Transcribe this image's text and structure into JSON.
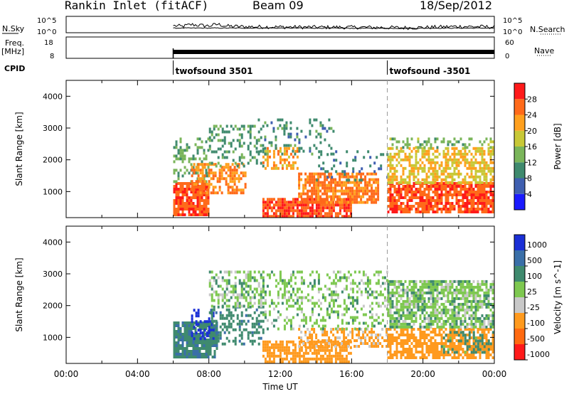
{
  "header": {
    "title": "Rankin Inlet (fitACF)",
    "beam": "Beam 09",
    "date": "18/Sep/2012"
  },
  "chart_data": [
    {
      "type": "line",
      "name": "noise-panel",
      "ylabel_left": "N.Sky",
      "ylabel_right": "N.Search",
      "left_ticks": [
        "10^5",
        "10^0"
      ],
      "right_ticks": [
        "10^5",
        "10^0"
      ],
      "xlim": [
        "00:00",
        "24:00"
      ],
      "data_start": "06:00",
      "series": [
        {
          "values": [
            [
              6.0,
              2.1
            ],
            [
              6.5,
              1.8
            ],
            [
              7.0,
              2.5
            ],
            [
              7.5,
              2.2
            ],
            [
              8.0,
              2.0
            ],
            [
              8.5,
              2.6
            ],
            [
              9.0,
              1.9
            ],
            [
              10.0,
              1.7
            ],
            [
              12.0,
              1.6
            ],
            [
              14.0,
              1.5
            ],
            [
              16.0,
              1.5
            ],
            [
              18.0,
              1.4
            ],
            [
              19.0,
              1.3
            ],
            [
              20.0,
              1.4
            ],
            [
              21.0,
              1.6
            ],
            [
              22.0,
              1.8
            ],
            [
              23.0,
              1.7
            ],
            [
              24.0,
              1.6
            ]
          ]
        },
        {
          "values": [
            [
              6.0,
              1.2
            ],
            [
              10.0,
              1.2
            ],
            [
              14.0,
              1.2
            ],
            [
              18.0,
              1.1
            ],
            [
              22.0,
              1.2
            ],
            [
              24.0,
              1.2
            ]
          ]
        }
      ]
    },
    {
      "type": "line",
      "name": "freq-nave-panel",
      "ylabel_left": "Freq. [MHz]",
      "ylabel_right": "Nave",
      "left_ticks": [
        18,
        8
      ],
      "right_ticks": [
        60,
        0
      ],
      "xlim": [
        "00:00",
        "24:00"
      ],
      "data_start": "06:00",
      "series": [
        {
          "values": [
            [
              6.0,
              11.0
            ],
            [
              24.0,
              11.0
            ]
          ]
        },
        {
          "values": [
            [
              6.0,
              10.0
            ],
            [
              24.0,
              10.0
            ]
          ]
        }
      ]
    },
    {
      "type": "table",
      "name": "cpid-row",
      "label": "CPID",
      "entries": [
        {
          "time": "06:00",
          "text": "twofsound 3501"
        },
        {
          "time": "18:00",
          "text": "twofsound -3501"
        }
      ]
    },
    {
      "type": "heatmap",
      "name": "power-panel",
      "ylabel": "Slant Range [km]",
      "yticks": [
        1000,
        2000,
        3000,
        4000
      ],
      "ylim": [
        180,
        4500
      ],
      "xlim": [
        "00:00",
        "24:00"
      ],
      "colorbar": {
        "label": "Power [dB]",
        "ticks": [
          4,
          8,
          12,
          16,
          20,
          24,
          28
        ],
        "range": [
          0,
          32
        ]
      },
      "regions": [
        {
          "t0": 6.0,
          "t1": 8.0,
          "r0": 300,
          "r1": 1300,
          "v": 27,
          "density": 0.85
        },
        {
          "t0": 6.0,
          "t1": 8.0,
          "r0": 1300,
          "r1": 2700,
          "v": 12,
          "density": 0.35
        },
        {
          "t0": 7.0,
          "t1": 10.0,
          "r0": 1000,
          "r1": 1900,
          "v": 24,
          "density": 0.6
        },
        {
          "t0": 8.0,
          "t1": 11.0,
          "r0": 1800,
          "r1": 3100,
          "v": 11,
          "density": 0.3
        },
        {
          "t0": 11.0,
          "t1": 16.0,
          "r0": 250,
          "r1": 800,
          "v": 27,
          "density": 0.85
        },
        {
          "t0": 13.0,
          "t1": 17.5,
          "r0": 700,
          "r1": 1600,
          "v": 25,
          "density": 0.75
        },
        {
          "t0": 11.0,
          "t1": 13.0,
          "r0": 1700,
          "r1": 2400,
          "v": 22,
          "density": 0.5
        },
        {
          "t0": 10.5,
          "t1": 15.0,
          "r0": 2200,
          "r1": 3300,
          "v": 10,
          "density": 0.18
        },
        {
          "t0": 14.0,
          "t1": 18.0,
          "r0": 1400,
          "r1": 2300,
          "v": 9,
          "density": 0.12
        },
        {
          "t0": 18.0,
          "t1": 24.0,
          "r0": 400,
          "r1": 1300,
          "v": 27,
          "density": 0.8
        },
        {
          "t0": 18.0,
          "t1": 24.0,
          "r0": 1300,
          "r1": 2400,
          "v": 20,
          "density": 0.6
        },
        {
          "t0": 18.0,
          "t1": 24.0,
          "r0": 2400,
          "r1": 2700,
          "v": 14,
          "density": 0.3
        }
      ]
    },
    {
      "type": "heatmap",
      "name": "velocity-panel",
      "ylabel": "Slant Range [km]",
      "yticks": [
        1000,
        2000,
        3000,
        4000
      ],
      "ylim": [
        180,
        4500
      ],
      "xlim": [
        "00:00",
        "24:00"
      ],
      "xticks": [
        "00:00",
        "04:00",
        "08:00",
        "12:00",
        "16:00",
        "20:00",
        "00:00"
      ],
      "xlabel": "Time UT",
      "colorbar": {
        "label": "Velocity [m s^-1]",
        "ticks": [
          "1000",
          "500",
          "100",
          "25",
          "-25",
          "-100",
          "-500",
          "-1000"
        ]
      },
      "regions": [
        {
          "t0": 6.0,
          "t1": 8.5,
          "r0": 350,
          "r1": 1500,
          "v": 80,
          "density": 0.85
        },
        {
          "t0": 7.0,
          "t1": 8.2,
          "r0": 1000,
          "r1": 1900,
          "v": 900,
          "density": 0.35
        },
        {
          "t0": 8.0,
          "t1": 11.0,
          "r0": 800,
          "r1": 2000,
          "v": 70,
          "density": 0.45
        },
        {
          "t0": 8.0,
          "t1": 11.0,
          "r0": 2000,
          "r1": 3100,
          "v": 0,
          "density": 0.45
        },
        {
          "t0": 11.0,
          "t1": 16.0,
          "r0": 250,
          "r1": 900,
          "v": -200,
          "density": 0.7
        },
        {
          "t0": 13.0,
          "t1": 18.0,
          "r0": 700,
          "r1": 1300,
          "v": -120,
          "density": 0.55
        },
        {
          "t0": 11.0,
          "t1": 18.0,
          "r0": 1300,
          "r1": 3100,
          "v": 0,
          "density": 0.3
        },
        {
          "t0": 18.0,
          "t1": 24.0,
          "r0": 400,
          "r1": 1300,
          "v": -250,
          "density": 0.7
        },
        {
          "t0": 21.0,
          "t1": 24.0,
          "r0": 500,
          "r1": 1200,
          "v": 60,
          "density": 0.35
        },
        {
          "t0": 18.0,
          "t1": 24.0,
          "r0": 1300,
          "r1": 2800,
          "v": 0,
          "density": 0.75
        }
      ]
    }
  ],
  "colors": {
    "power_scale": [
      "#1a1aff",
      "#3f5fb0",
      "#3f8a6e",
      "#7ab55a",
      "#c8c837",
      "#ffa01e",
      "#ff6a1a",
      "#ff1a1a"
    ],
    "velocity_scale": [
      "#1a2fd6",
      "#3a6fa8",
      "#3f8a6e",
      "#7ec850",
      "#c8c8c8",
      "#ff9a1e",
      "#ff6a10",
      "#ff1a1a"
    ]
  }
}
